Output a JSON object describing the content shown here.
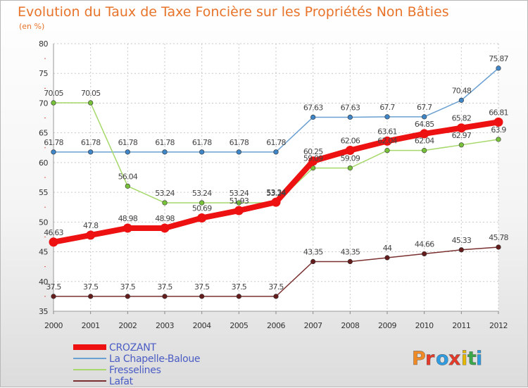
{
  "chart_data": {
    "type": "line",
    "title": "Evolution du Taux de Taxe Foncière sur les Propriétés Non Bâties",
    "subtitle": "(en %)",
    "x": [
      "2000",
      "2001",
      "2002",
      "2003",
      "2004",
      "2005",
      "2006",
      "2007",
      "2008",
      "2009",
      "2010",
      "2011",
      "2012"
    ],
    "ylim": [
      35,
      80
    ],
    "yticks": [
      "35",
      "40",
      "45",
      "50",
      "55",
      "60",
      "65",
      "70",
      "75",
      "80"
    ],
    "grid": true,
    "legend_position": "bottom-left",
    "series": [
      {
        "name": "La Chapelle-Baloue",
        "color": "#6aa0d2",
        "marker": "#3f86c8",
        "values": [
          61.78,
          61.78,
          61.78,
          61.78,
          61.78,
          61.78,
          61.78,
          67.63,
          67.63,
          67.7,
          67.7,
          70.48,
          75.87
        ],
        "labels": [
          "61.78",
          "61.78",
          "61.78",
          "61.78",
          "61.78",
          "61.78",
          "61.78",
          "67.63",
          "67.63",
          "67.7",
          "67.7",
          "70.48",
          "75.87"
        ]
      },
      {
        "name": "Fresselines",
        "color": "#a6d86a",
        "marker": "#78c23a",
        "values": [
          70.05,
          70.05,
          56.04,
          53.24,
          53.24,
          53.24,
          53.24,
          59.09,
          59.09,
          62.04,
          62.04,
          62.97,
          63.9
        ],
        "labels": [
          "70.05",
          "70.05",
          "56.04",
          "53.24",
          "53.24",
          "53.24",
          "53.24",
          "59.09",
          "59.09",
          "62.04",
          "62.04",
          "62.97",
          "63.9"
        ]
      },
      {
        "name": "Lafat",
        "color": "#7a3030",
        "marker": "#651c1c",
        "values": [
          37.5,
          37.5,
          37.5,
          37.5,
          37.5,
          37.5,
          37.5,
          43.35,
          43.35,
          44,
          44.66,
          45.33,
          45.78
        ],
        "labels": [
          "37.5",
          "37.5",
          "37.5",
          "37.5",
          "37.5",
          "37.5",
          "37.5",
          "43.35",
          "43.35",
          "44",
          "44.66",
          "45.33",
          "45.78"
        ]
      },
      {
        "name": "CROZANT",
        "color": "#ee1111",
        "marker": "#ee1111",
        "bold": true,
        "values": [
          46.63,
          47.8,
          48.98,
          48.98,
          50.69,
          51.93,
          53.34,
          60.25,
          62.06,
          63.61,
          64.85,
          65.82,
          66.81
        ],
        "labels": [
          "46.63",
          "47.8",
          "48.98",
          "48.98",
          "50.69",
          "51.93",
          "53.34",
          "60.25",
          "62.06",
          "63.61",
          "64.85",
          "65.82",
          "66.81"
        ]
      }
    ],
    "legend": [
      {
        "name": "CROZANT",
        "color": "#ee1111",
        "text_color": "#4a5cc4",
        "bold": true
      },
      {
        "name": "La Chapelle-Baloue",
        "color": "#6aa0d2",
        "text_color": "#4a5cc4"
      },
      {
        "name": "Fresselines",
        "color": "#a6d86a",
        "text_color": "#4a5cc4"
      },
      {
        "name": "Lafat",
        "color": "#7a3030",
        "text_color": "#4a5cc4"
      }
    ]
  },
  "logo": {
    "letters": [
      "P",
      "r",
      "o",
      "x",
      "i",
      "t",
      "i"
    ]
  }
}
